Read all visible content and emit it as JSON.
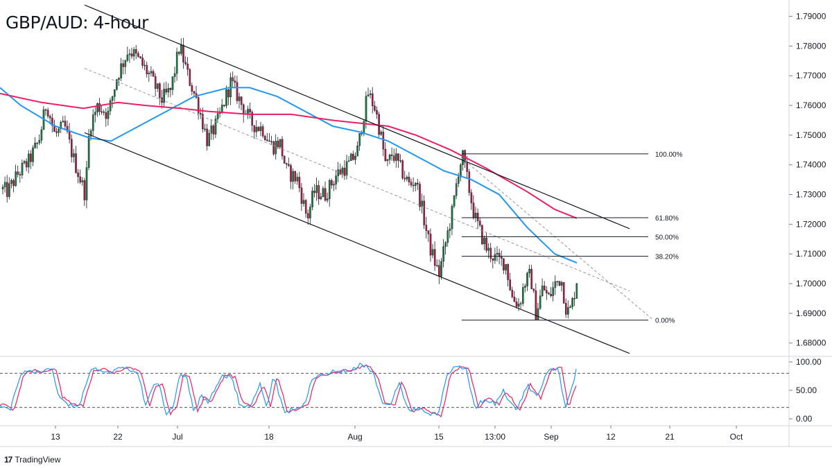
{
  "chart_data": {
    "type": "candlestick",
    "title": "GBP/AUD: 4-hour",
    "price_axis": {
      "ticks": [
        "1.79000",
        "1.78000",
        "1.77000",
        "1.76000",
        "1.75000",
        "1.74000",
        "1.73000",
        "1.72000",
        "1.71000",
        "1.70000",
        "1.69000",
        "1.68000"
      ],
      "range": [
        1.6755,
        1.7955
      ]
    },
    "time_axis": {
      "ticks": [
        "13",
        "22",
        "Jul",
        "18",
        "Aug",
        "15",
        "13:00",
        "Sep",
        "12",
        "21",
        "Oct"
      ]
    },
    "price_path": [
      [
        0,
        1.732
      ],
      [
        10,
        1.731
      ],
      [
        25,
        1.737
      ],
      [
        40,
        1.741
      ],
      [
        55,
        1.748
      ],
      [
        66,
        1.761
      ],
      [
        78,
        1.75
      ],
      [
        92,
        1.753
      ],
      [
        105,
        1.742
      ],
      [
        122,
        1.73
      ],
      [
        128,
        1.753
      ],
      [
        140,
        1.76
      ],
      [
        155,
        1.757
      ],
      [
        168,
        1.77
      ],
      [
        185,
        1.779
      ],
      [
        200,
        1.775
      ],
      [
        215,
        1.77
      ],
      [
        232,
        1.762
      ],
      [
        245,
        1.765
      ],
      [
        258,
        1.78
      ],
      [
        270,
        1.77
      ],
      [
        285,
        1.76
      ],
      [
        298,
        1.748
      ],
      [
        312,
        1.754
      ],
      [
        332,
        1.768
      ],
      [
        348,
        1.76
      ],
      [
        362,
        1.754
      ],
      [
        378,
        1.752
      ],
      [
        392,
        1.746
      ],
      [
        402,
        1.748
      ],
      [
        412,
        1.738
      ],
      [
        428,
        1.735
      ],
      [
        442,
        1.722
      ],
      [
        452,
        1.731
      ],
      [
        468,
        1.73
      ],
      [
        485,
        1.737
      ],
      [
        502,
        1.74
      ],
      [
        515,
        1.745
      ],
      [
        522,
        1.755
      ],
      [
        530,
        1.764
      ],
      [
        540,
        1.759
      ],
      [
        548,
        1.75
      ],
      [
        556,
        1.739
      ],
      [
        565,
        1.744
      ],
      [
        578,
        1.738
      ],
      [
        590,
        1.733
      ],
      [
        598,
        1.735
      ],
      [
        605,
        1.728
      ],
      [
        618,
        1.713
      ],
      [
        632,
        1.703
      ],
      [
        640,
        1.712
      ],
      [
        652,
        1.725
      ],
      [
        660,
        1.738
      ],
      [
        666,
        1.743
      ],
      [
        672,
        1.736
      ],
      [
        683,
        1.723
      ],
      [
        692,
        1.717
      ],
      [
        702,
        1.711
      ],
      [
        716,
        1.708
      ],
      [
        728,
        1.707
      ],
      [
        738,
        1.695
      ],
      [
        748,
        1.693
      ],
      [
        755,
        1.7
      ],
      [
        764,
        1.703
      ],
      [
        772,
        1.69
      ],
      [
        782,
        1.699
      ],
      [
        790,
        1.695
      ],
      [
        800,
        1.7
      ],
      [
        808,
        1.702
      ],
      [
        815,
        1.692
      ],
      [
        820,
        1.69
      ],
      [
        826,
        1.695
      ],
      [
        832,
        1.703
      ]
    ],
    "moving_averages": [
      {
        "color": "#2196f3",
        "path": [
          [
            0,
            1.766
          ],
          [
            30,
            1.76
          ],
          [
            80,
            1.753
          ],
          [
            130,
            1.749
          ],
          [
            160,
            1.748
          ],
          [
            200,
            1.753
          ],
          [
            240,
            1.758
          ],
          [
            280,
            1.763
          ],
          [
            330,
            1.766
          ],
          [
            360,
            1.766
          ],
          [
            400,
            1.763
          ],
          [
            440,
            1.758
          ],
          [
            480,
            1.753
          ],
          [
            520,
            1.751
          ],
          [
            560,
            1.748
          ],
          [
            600,
            1.743
          ],
          [
            640,
            1.738
          ],
          [
            680,
            1.735
          ],
          [
            720,
            1.73
          ],
          [
            760,
            1.719
          ],
          [
            800,
            1.71
          ],
          [
            832,
            1.707
          ]
        ]
      },
      {
        "color": "#e91e63",
        "path": [
          [
            0,
            1.764
          ],
          [
            60,
            1.761
          ],
          [
            120,
            1.759
          ],
          [
            170,
            1.761
          ],
          [
            210,
            1.76
          ],
          [
            260,
            1.759
          ],
          [
            300,
            1.758
          ],
          [
            360,
            1.757
          ],
          [
            420,
            1.757
          ],
          [
            480,
            1.755
          ],
          [
            520,
            1.754
          ],
          [
            560,
            1.753
          ],
          [
            600,
            1.75
          ],
          [
            650,
            1.745
          ],
          [
            700,
            1.739
          ],
          [
            760,
            1.731
          ],
          [
            800,
            1.725
          ],
          [
            832,
            1.722
          ]
        ]
      }
    ],
    "trend_channel": {
      "upper": [
        [
          122,
          1.7938
        ],
        [
          908,
          1.7185
        ]
      ],
      "lower": [
        [
          122,
          1.7508
        ],
        [
          908,
          1.6765
        ]
      ],
      "mid_dashed": [
        [
          122,
          1.7725
        ],
        [
          908,
          1.6975
        ]
      ],
      "aux_dashed": [
        [
          665,
          1.7425
        ],
        [
          940,
          1.6882
        ]
      ]
    },
    "fibonacci": {
      "x_range": [
        666,
        935
      ],
      "levels": [
        {
          "label": "100.00%",
          "price": 1.7437
        },
        {
          "label": "61.80%",
          "price": 1.7222
        },
        {
          "label": "50.00%",
          "price": 1.7158
        },
        {
          "label": "38.20%",
          "price": 1.7092
        },
        {
          "label": "0.00%",
          "price": 1.6877
        }
      ]
    },
    "oscillator": {
      "ticks": [
        "100.00",
        "50.00",
        "0.00"
      ],
      "levels": [
        80,
        20
      ],
      "colors": [
        "#2196f3",
        "#e91e63"
      ],
      "k_path": [
        [
          0,
          25
        ],
        [
          15,
          15
        ],
        [
          30,
          80
        ],
        [
          45,
          85
        ],
        [
          60,
          82
        ],
        [
          75,
          90
        ],
        [
          85,
          38
        ],
        [
          100,
          25
        ],
        [
          115,
          24
        ],
        [
          130,
          84
        ],
        [
          145,
          88
        ],
        [
          160,
          80
        ],
        [
          175,
          90
        ],
        [
          190,
          86
        ],
        [
          200,
          79
        ],
        [
          210,
          22
        ],
        [
          220,
          55
        ],
        [
          230,
          60
        ],
        [
          240,
          8
        ],
        [
          250,
          20
        ],
        [
          260,
          82
        ],
        [
          270,
          70
        ],
        [
          280,
          10
        ],
        [
          290,
          40
        ],
        [
          300,
          30
        ],
        [
          320,
          78
        ],
        [
          335,
          72
        ],
        [
          345,
          28
        ],
        [
          360,
          20
        ],
        [
          375,
          60
        ],
        [
          385,
          22
        ],
        [
          395,
          76
        ],
        [
          410,
          10
        ],
        [
          420,
          16
        ],
        [
          440,
          24
        ],
        [
          450,
          72
        ],
        [
          470,
          80
        ],
        [
          490,
          84
        ],
        [
          510,
          88
        ],
        [
          520,
          95
        ],
        [
          530,
          90
        ],
        [
          540,
          75
        ],
        [
          550,
          30
        ],
        [
          565,
          26
        ],
        [
          575,
          66
        ],
        [
          590,
          12
        ],
        [
          605,
          20
        ],
        [
          620,
          10
        ],
        [
          632,
          4
        ],
        [
          645,
          80
        ],
        [
          660,
          92
        ],
        [
          672,
          88
        ],
        [
          685,
          20
        ],
        [
          700,
          35
        ],
        [
          715,
          26
        ],
        [
          725,
          50
        ],
        [
          745,
          14
        ],
        [
          760,
          60
        ],
        [
          775,
          36
        ],
        [
          790,
          86
        ],
        [
          805,
          90
        ],
        [
          815,
          20
        ],
        [
          825,
          55
        ],
        [
          832,
          92
        ]
      ]
    }
  },
  "branding": {
    "logo": "17",
    "name": "TradingView"
  }
}
